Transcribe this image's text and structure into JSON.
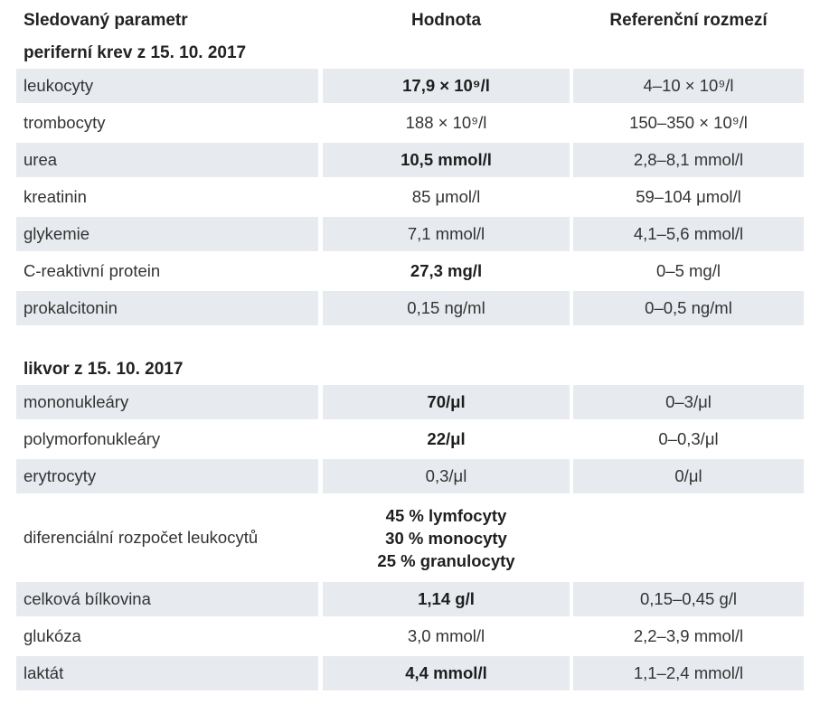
{
  "header": {
    "col_parameter": "Sledovaný parametr",
    "col_value": "Hodnota",
    "col_reference": "Referenční rozmezí"
  },
  "sections": [
    {
      "title": "periferní krev z 15. 10. 2017",
      "rows": [
        {
          "parameter": "leukocyty",
          "value": "17,9 × 10⁹/l",
          "reference": "4–10 × 10⁹/l",
          "value_bold": true
        },
        {
          "parameter": "trombocyty",
          "value": "188 × 10⁹/l",
          "reference": "150–350 × 10⁹/l",
          "value_bold": false
        },
        {
          "parameter": "urea",
          "value": "10,5 mmol/l",
          "reference": "2,8–8,1 mmol/l",
          "value_bold": true
        },
        {
          "parameter": "kreatinin",
          "value": "85 μmol/l",
          "reference": "59–104 μmol/l",
          "value_bold": false
        },
        {
          "parameter": "glykemie",
          "value": "7,1 mmol/l",
          "reference": "4,1–5,6 mmol/l",
          "value_bold": false
        },
        {
          "parameter": "C-reaktivní protein",
          "value": "27,3 mg/l",
          "reference": "0–5 mg/l",
          "value_bold": true
        },
        {
          "parameter": "prokalcitonin",
          "value": "0,15 ng/ml",
          "reference": "0–0,5 ng/ml",
          "value_bold": false
        }
      ]
    },
    {
      "title": "likvor z 15. 10. 2017",
      "rows": [
        {
          "parameter": "mononukleáry",
          "value": "70/μl",
          "reference": "0–3/μl",
          "value_bold": true
        },
        {
          "parameter": "polymorfonukleáry",
          "value": "22/μl",
          "reference": "0–0,3/μl",
          "value_bold": true
        },
        {
          "parameter": "erytrocyty",
          "value": "0,3/μl",
          "reference": "0/μl",
          "value_bold": false
        },
        {
          "parameter": "diferenciální rozpočet leukocytů",
          "value_lines": [
            "45 % lymfocyty",
            "30 % monocyty",
            "25 % granulocyty"
          ],
          "reference": "",
          "value_bold": true
        },
        {
          "parameter": "celková bílkovina",
          "value": "1,14 g/l",
          "reference": "0,15–0,45 g/l",
          "value_bold": true
        },
        {
          "parameter": "glukóza",
          "value": "3,0 mmol/l",
          "reference": "2,2–3,9 mmol/l",
          "value_bold": false
        },
        {
          "parameter": "laktát",
          "value": "4,4 mmol/l",
          "reference": "1,1–2,4 mmol/l",
          "value_bold": true
        }
      ]
    }
  ],
  "colors": {
    "row_shade": "#e7ebef",
    "text": "#333333"
  }
}
